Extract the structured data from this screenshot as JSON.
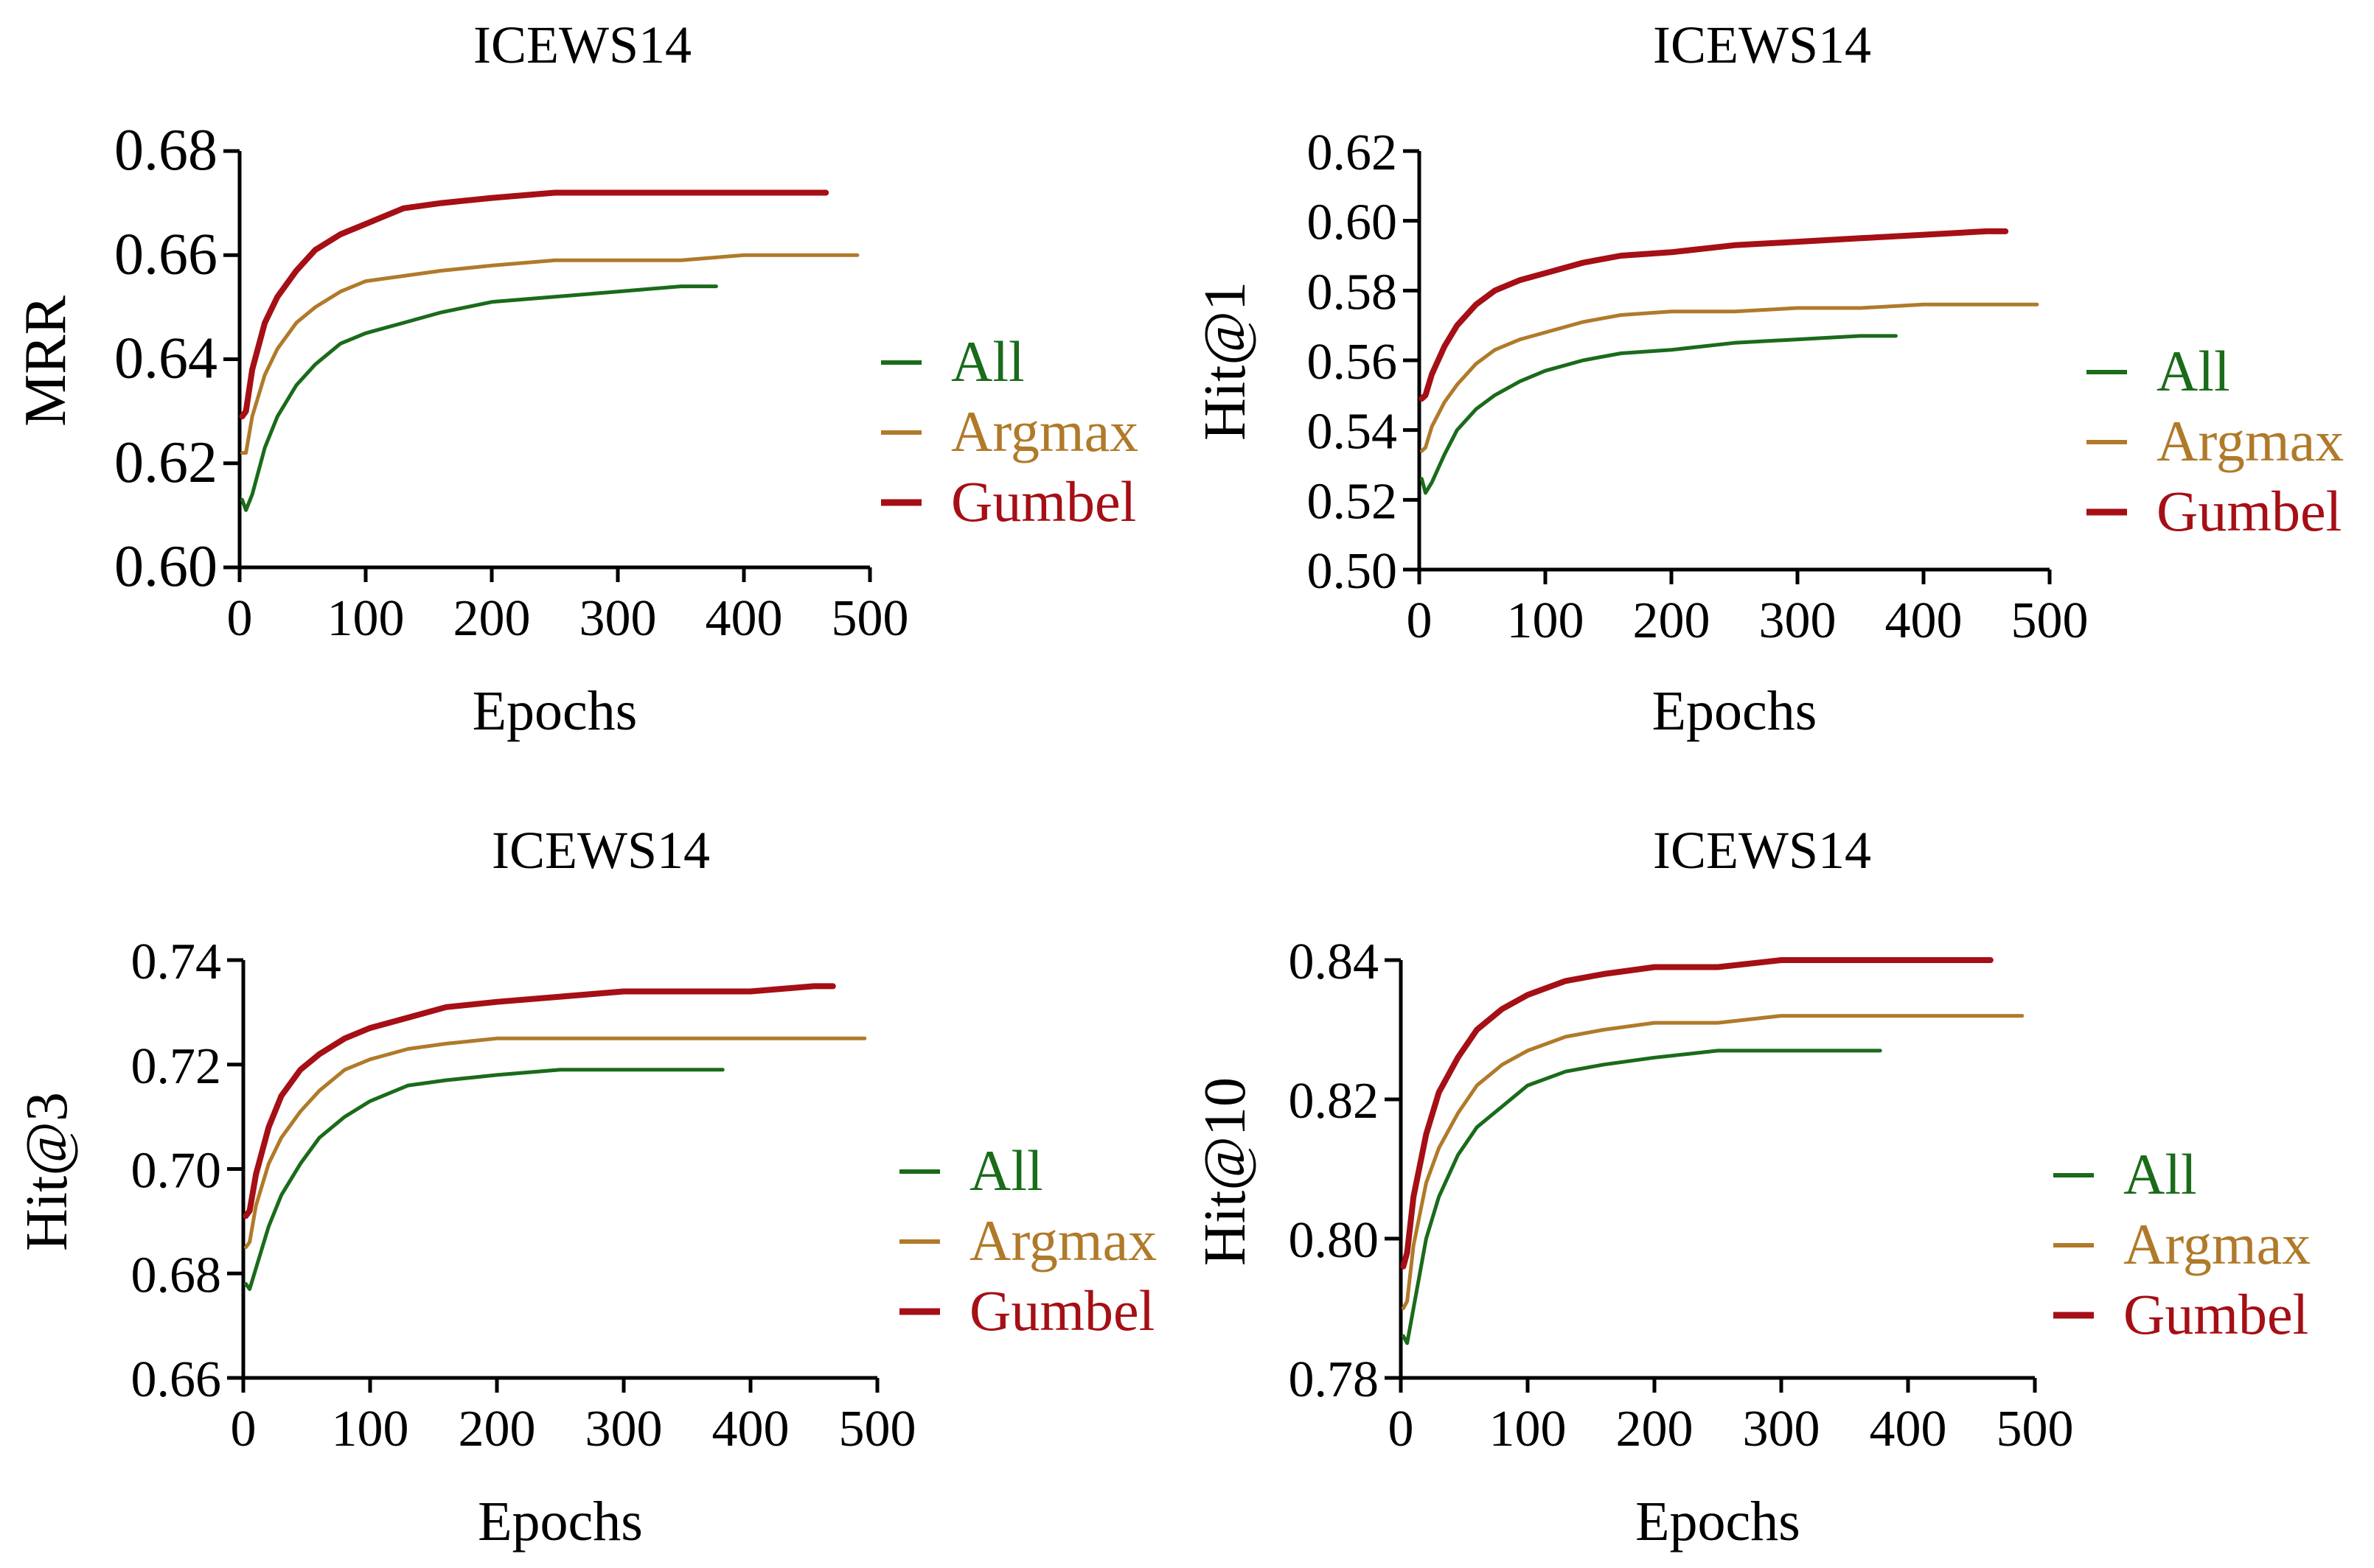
{
  "colors": {
    "all": "#1a6b1a",
    "argmax": "#b07a2a",
    "gumbel": "#a50f15"
  },
  "chart_data": [
    {
      "type": "line",
      "title": "ICEWS14",
      "xlabel": "Epochs",
      "ylabel": "MRR",
      "xlim": [
        0,
        500
      ],
      "ylim": [
        0.6,
        0.68
      ],
      "xticks": [
        "0",
        "100",
        "200",
        "300",
        "400",
        "500"
      ],
      "yticks": [
        "0.60",
        "0.62",
        "0.64",
        "0.66",
        "0.68"
      ],
      "legend": [
        "All",
        "Argmax",
        "Gumbel"
      ],
      "series": [
        {
          "name": "All",
          "x": [
            2,
            5,
            10,
            20,
            30,
            45,
            60,
            80,
            100,
            130,
            160,
            200,
            250,
            300,
            350,
            378
          ],
          "values": [
            0.613,
            0.611,
            0.614,
            0.623,
            0.629,
            0.635,
            0.639,
            0.643,
            0.645,
            0.647,
            0.649,
            0.651,
            0.652,
            0.653,
            0.654,
            0.654
          ]
        },
        {
          "name": "Argmax",
          "x": [
            2,
            5,
            10,
            20,
            30,
            45,
            60,
            80,
            100,
            130,
            160,
            200,
            250,
            300,
            350,
            400,
            450,
            490
          ],
          "values": [
            0.622,
            0.622,
            0.629,
            0.637,
            0.642,
            0.647,
            0.65,
            0.653,
            0.655,
            0.656,
            0.657,
            0.658,
            0.659,
            0.659,
            0.659,
            0.66,
            0.66,
            0.66
          ]
        },
        {
          "name": "Gumbel",
          "x": [
            2,
            5,
            10,
            20,
            30,
            45,
            60,
            80,
            100,
            130,
            160,
            200,
            250,
            300,
            350,
            400,
            450,
            465
          ],
          "values": [
            0.629,
            0.63,
            0.638,
            0.647,
            0.652,
            0.657,
            0.661,
            0.664,
            0.666,
            0.669,
            0.67,
            0.671,
            0.672,
            0.672,
            0.672,
            0.672,
            0.672,
            0.672
          ]
        }
      ]
    },
    {
      "type": "line",
      "title": "ICEWS14",
      "xlabel": "Epochs",
      "ylabel": "Hit@1",
      "xlim": [
        0,
        500
      ],
      "ylim": [
        0.5,
        0.62
      ],
      "xticks": [
        "0",
        "100",
        "200",
        "300",
        "400",
        "500"
      ],
      "yticks": [
        "0.50",
        "0.52",
        "0.54",
        "0.56",
        "0.58",
        "0.60",
        "0.62"
      ],
      "legend": [
        "All",
        "Argmax",
        "Gumbel"
      ],
      "series": [
        {
          "name": "All",
          "x": [
            2,
            5,
            10,
            20,
            30,
            45,
            60,
            80,
            100,
            130,
            160,
            200,
            250,
            300,
            350,
            378
          ],
          "values": [
            0.526,
            0.522,
            0.525,
            0.533,
            0.54,
            0.546,
            0.55,
            0.554,
            0.557,
            0.56,
            0.562,
            0.563,
            0.565,
            0.566,
            0.567,
            0.567
          ]
        },
        {
          "name": "Argmax",
          "x": [
            2,
            5,
            10,
            20,
            30,
            45,
            60,
            80,
            100,
            130,
            160,
            200,
            250,
            300,
            350,
            400,
            450,
            490
          ],
          "values": [
            0.534,
            0.535,
            0.541,
            0.548,
            0.553,
            0.559,
            0.563,
            0.566,
            0.568,
            0.571,
            0.573,
            0.574,
            0.574,
            0.575,
            0.575,
            0.576,
            0.576,
            0.576
          ]
        },
        {
          "name": "Gumbel",
          "x": [
            2,
            5,
            10,
            20,
            30,
            45,
            60,
            80,
            100,
            130,
            160,
            200,
            250,
            300,
            350,
            400,
            450,
            465
          ],
          "values": [
            0.549,
            0.55,
            0.556,
            0.564,
            0.57,
            0.576,
            0.58,
            0.583,
            0.585,
            0.588,
            0.59,
            0.591,
            0.593,
            0.594,
            0.595,
            0.596,
            0.597,
            0.597
          ]
        }
      ]
    },
    {
      "type": "line",
      "title": "ICEWS14",
      "xlabel": "Epochs",
      "ylabel": "Hit@3",
      "xlim": [
        0,
        500
      ],
      "ylim": [
        0.66,
        0.74
      ],
      "xticks": [
        "0",
        "100",
        "200",
        "300",
        "400",
        "500"
      ],
      "yticks": [
        "0.66",
        "0.68",
        "0.70",
        "0.72",
        "0.74"
      ],
      "legend": [
        "All",
        "Argmax",
        "Gumbel"
      ],
      "series": [
        {
          "name": "All",
          "x": [
            2,
            5,
            10,
            20,
            30,
            45,
            60,
            80,
            100,
            130,
            160,
            200,
            250,
            300,
            350,
            378
          ],
          "values": [
            0.678,
            0.677,
            0.681,
            0.689,
            0.695,
            0.701,
            0.706,
            0.71,
            0.713,
            0.716,
            0.717,
            0.718,
            0.719,
            0.719,
            0.719,
            0.719
          ]
        },
        {
          "name": "Argmax",
          "x": [
            2,
            5,
            10,
            20,
            30,
            45,
            60,
            80,
            100,
            130,
            160,
            200,
            250,
            300,
            350,
            400,
            450,
            490
          ],
          "values": [
            0.685,
            0.686,
            0.693,
            0.701,
            0.706,
            0.711,
            0.715,
            0.719,
            0.721,
            0.723,
            0.724,
            0.725,
            0.725,
            0.725,
            0.725,
            0.725,
            0.725,
            0.725
          ]
        },
        {
          "name": "Gumbel",
          "x": [
            2,
            5,
            10,
            20,
            30,
            45,
            60,
            80,
            100,
            130,
            160,
            200,
            250,
            300,
            350,
            400,
            450,
            465
          ],
          "values": [
            0.691,
            0.692,
            0.699,
            0.708,
            0.714,
            0.719,
            0.722,
            0.725,
            0.727,
            0.729,
            0.731,
            0.732,
            0.733,
            0.734,
            0.734,
            0.734,
            0.735,
            0.735
          ]
        }
      ]
    },
    {
      "type": "line",
      "title": "ICEWS14",
      "xlabel": "Epochs",
      "ylabel": "Hit@10",
      "xlim": [
        0,
        500
      ],
      "ylim": [
        0.78,
        0.84
      ],
      "xticks": [
        "0",
        "100",
        "200",
        "300",
        "400",
        "500"
      ],
      "yticks": [
        "0.78",
        "0.80",
        "0.82",
        "0.84"
      ],
      "legend": [
        "All",
        "Argmax",
        "Gumbel"
      ],
      "series": [
        {
          "name": "All",
          "x": [
            2,
            5,
            10,
            20,
            30,
            45,
            60,
            80,
            100,
            130,
            160,
            200,
            250,
            300,
            350,
            378
          ],
          "values": [
            0.786,
            0.785,
            0.79,
            0.8,
            0.806,
            0.812,
            0.816,
            0.819,
            0.822,
            0.824,
            0.825,
            0.826,
            0.827,
            0.827,
            0.827,
            0.827
          ]
        },
        {
          "name": "Argmax",
          "x": [
            2,
            5,
            10,
            20,
            30,
            45,
            60,
            80,
            100,
            130,
            160,
            200,
            250,
            300,
            350,
            400,
            450,
            490
          ],
          "values": [
            0.79,
            0.791,
            0.799,
            0.808,
            0.813,
            0.818,
            0.822,
            0.825,
            0.827,
            0.829,
            0.83,
            0.831,
            0.831,
            0.832,
            0.832,
            0.832,
            0.832,
            0.832
          ]
        },
        {
          "name": "Gumbel",
          "x": [
            2,
            5,
            10,
            20,
            30,
            45,
            60,
            80,
            100,
            130,
            160,
            200,
            250,
            300,
            350,
            400,
            450,
            465
          ],
          "values": [
            0.796,
            0.798,
            0.806,
            0.815,
            0.821,
            0.826,
            0.83,
            0.833,
            0.835,
            0.837,
            0.838,
            0.839,
            0.839,
            0.84,
            0.84,
            0.84,
            0.84,
            0.84
          ]
        }
      ]
    }
  ]
}
